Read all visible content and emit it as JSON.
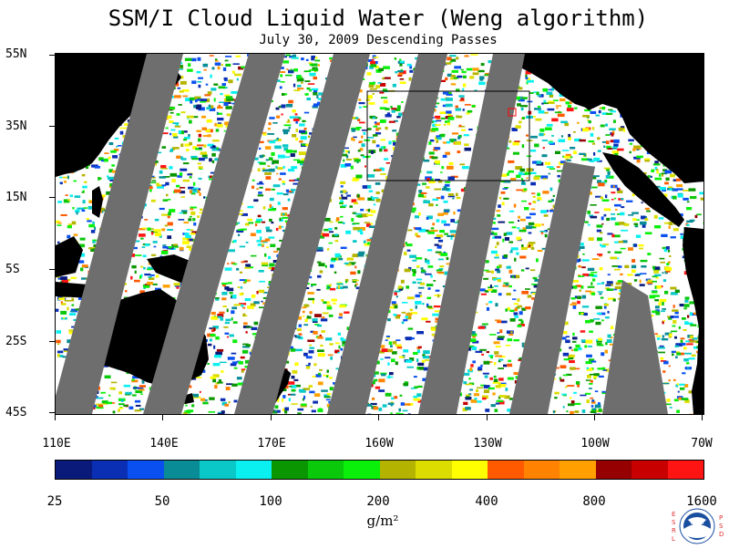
{
  "title": "SSM/I Cloud Liquid Water (Weng algorithm)",
  "subtitle": "July 30, 2009  Descending Passes",
  "lat_labels": [
    "55N",
    "35N",
    "15N",
    "5S",
    "25S",
    "45S"
  ],
  "lon_labels": [
    "110E",
    "140E",
    "170E",
    "160W",
    "130W",
    "100W",
    "70W"
  ],
  "colorbar": {
    "colors": [
      "#0a1a7a",
      "#0a2eb4",
      "#0a50f0",
      "#0a8c96",
      "#0ac8c8",
      "#0af0f0",
      "#0a9600",
      "#0ac80a",
      "#0af00a",
      "#b4b400",
      "#dcdc00",
      "#ffff00",
      "#ff5a00",
      "#ff8200",
      "#ffa000",
      "#960000",
      "#c80000",
      "#ff1414"
    ],
    "tick_labels": [
      "25",
      "50",
      "100",
      "200",
      "400",
      "800",
      "1600"
    ],
    "units": "g/m²"
  },
  "logo": {
    "left_letters": "ESRL",
    "right_letters": "PSD",
    "center": "NOAA"
  },
  "colors": {
    "land": "#000000",
    "swath_gap": "#6e6e6e",
    "clear_ocean": "#ffffff",
    "box": "#000000",
    "marker": "#ff0000"
  }
}
